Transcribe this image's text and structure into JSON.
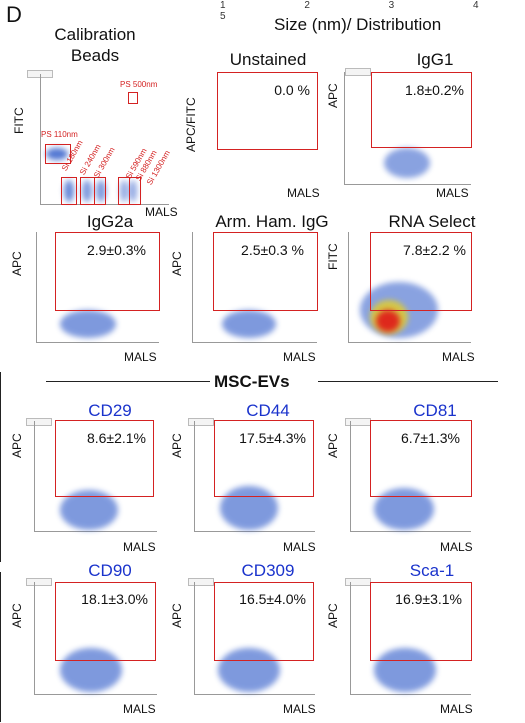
{
  "panel_letter": "D",
  "header": "Size (nm)/ Distribution",
  "top_ticks": "1 2 3 4 5",
  "calibration": {
    "title_line1": "Calibration",
    "title_line2": "Beads",
    "ylabel": "FITC",
    "xlabel": "MALS",
    "labels": [
      "PS 500nm",
      "PS 110nm",
      "Si 180nm",
      "Si 240nm",
      "Si 300nm",
      "Si 590nm",
      "Si 880nm",
      "Si 1300nm"
    ]
  },
  "row1": [
    {
      "title": "Unstained",
      "pct": "0.0 %",
      "ylabel": "APC/FITC",
      "xlabel": "MALS"
    },
    {
      "title": "IgG1",
      "pct": "1.8±0.2%",
      "ylabel": "APC",
      "xlabel": "MALS"
    }
  ],
  "row2": [
    {
      "title": "IgG2a",
      "pct": "2.9±0.3%",
      "ylabel": "APC",
      "xlabel": "MALS"
    },
    {
      "title": "Arm. Ham. IgG",
      "pct": "2.5±0.3 %",
      "ylabel": "APC",
      "xlabel": "MALS"
    },
    {
      "title": "RNA Select",
      "pct": "7.8±2.2 %",
      "ylabel": "FITC",
      "xlabel": "MALS"
    }
  ],
  "section_title": "MSC-EVs",
  "row3": [
    {
      "title": "CD29",
      "pct": "8.6±2.1%",
      "ylabel": "APC",
      "xlabel": "MALS"
    },
    {
      "title": "CD44",
      "pct": "17.5±4.3%",
      "ylabel": "APC",
      "xlabel": "MALS"
    },
    {
      "title": "CD81",
      "pct": "6.7±1.3%",
      "ylabel": "APC",
      "xlabel": "MALS"
    }
  ],
  "row4": [
    {
      "title": "CD90",
      "pct": "18.1±3.0%",
      "ylabel": "APC",
      "xlabel": "MALS"
    },
    {
      "title": "CD309",
      "pct": "16.5±4.0%",
      "ylabel": "APC",
      "xlabel": "MALS"
    },
    {
      "title": "Sca-1",
      "pct": "16.9±3.1%",
      "ylabel": "APC",
      "xlabel": "MALS"
    }
  ],
  "colors": {
    "gate": "#d42222",
    "marker_title": "#1a33cc",
    "cloud": "#2a57c8"
  }
}
